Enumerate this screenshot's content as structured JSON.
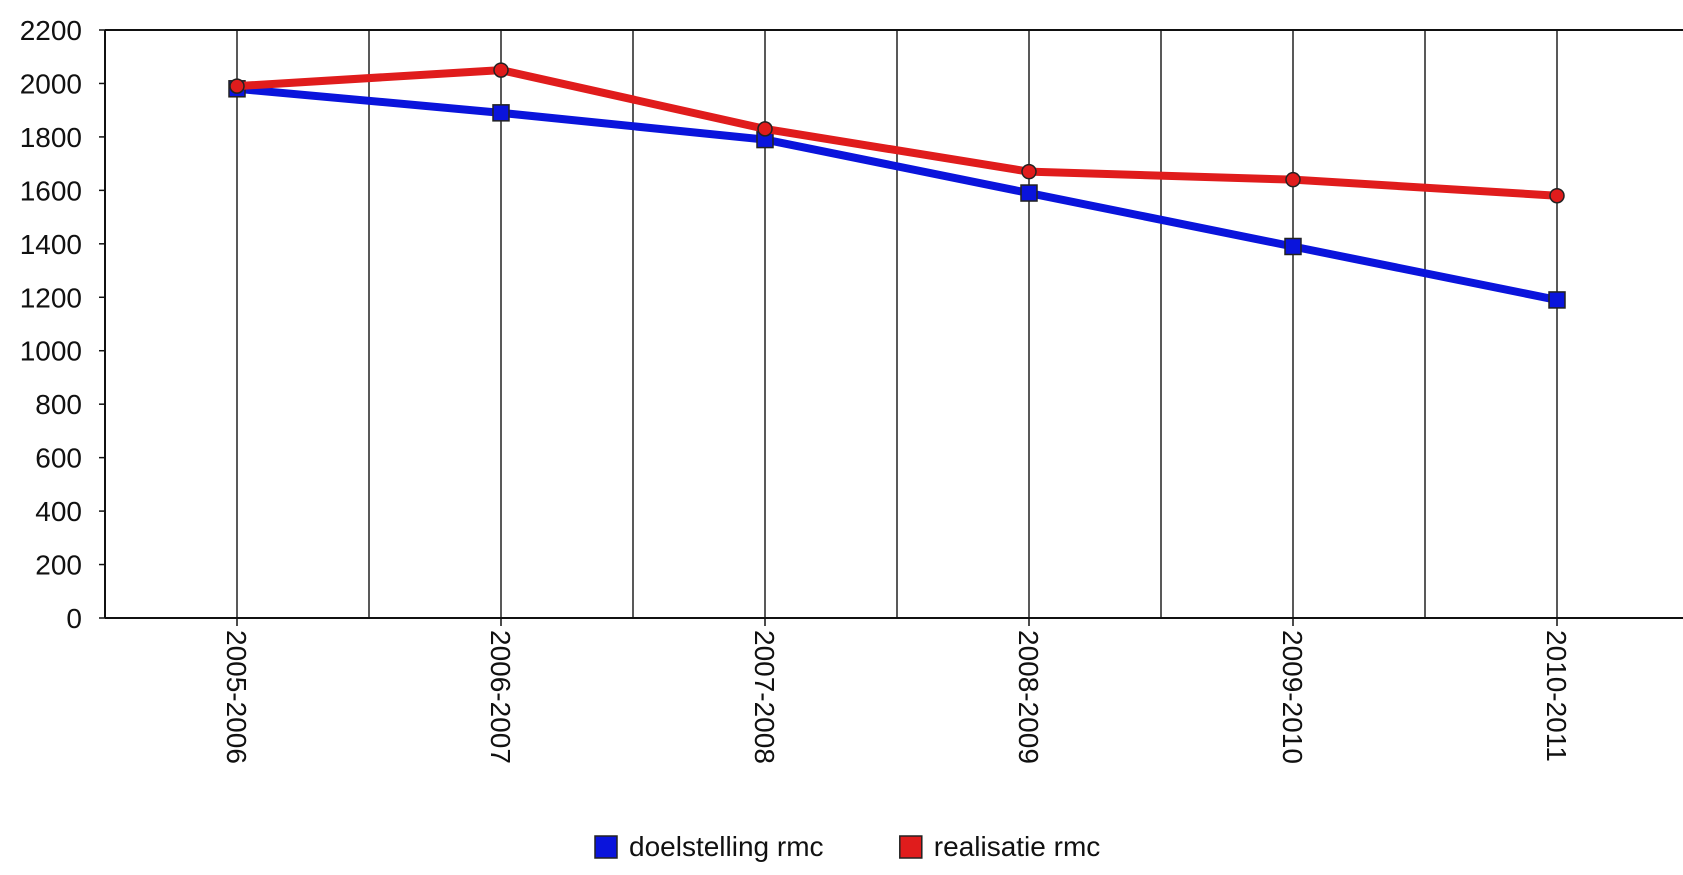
{
  "chart_data": {
    "type": "line",
    "title": "",
    "xlabel": "",
    "ylabel": "",
    "categories": [
      "2005-2006",
      "2006-2007",
      "2007-2008",
      "2008-2009",
      "2009-2010",
      "2010-2011"
    ],
    "ylim": [
      0,
      2200
    ],
    "yticks": [
      0,
      200,
      400,
      600,
      800,
      1000,
      1200,
      1400,
      1600,
      1800,
      2000,
      2200
    ],
    "grid": {
      "vertical": true,
      "horizontal": false
    },
    "legend_position": "bottom-center",
    "series": [
      {
        "name": "doelstelling rmc",
        "color": "#0a14dc",
        "marker": "square",
        "values": [
          1980,
          1890,
          1790,
          1590,
          1390,
          1190
        ]
      },
      {
        "name": "realisatie rmc",
        "color": "#e01c1c",
        "marker": "circle",
        "values": [
          1990,
          2050,
          1830,
          1670,
          1640,
          1580
        ]
      }
    ]
  }
}
